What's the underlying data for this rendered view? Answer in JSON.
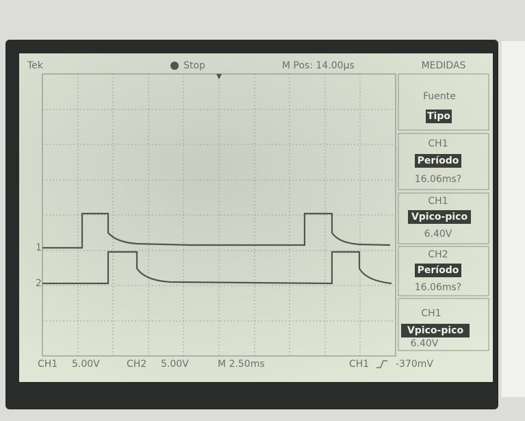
{
  "header": {
    "brand": "Tek",
    "state": "Stop",
    "position": "M Pos: 14.00µs",
    "menu_title": "MEDIDAS"
  },
  "channel_markers": [
    "1",
    "2"
  ],
  "menu": [
    {
      "label": "Fuente",
      "value": "Tipo"
    },
    {
      "label": "CH1",
      "value": "Período",
      "reading": "16.06ms?"
    },
    {
      "label": "CH1",
      "value": "Vpico-pico",
      "reading": "6.40V"
    },
    {
      "label": "CH2",
      "value": "Período",
      "reading": "16.06ms?"
    },
    {
      "label": "CH1",
      "value": "Vpico-pico",
      "reading": "6.40V"
    }
  ],
  "footer": {
    "ch1_label": "CH1",
    "ch1_scale": "5.00V",
    "ch2_label": "CH2",
    "ch2_scale": "5.00V",
    "timebase": "M 2.50ms",
    "trigger_source": "CH1",
    "trigger_level": "-370mV"
  }
}
